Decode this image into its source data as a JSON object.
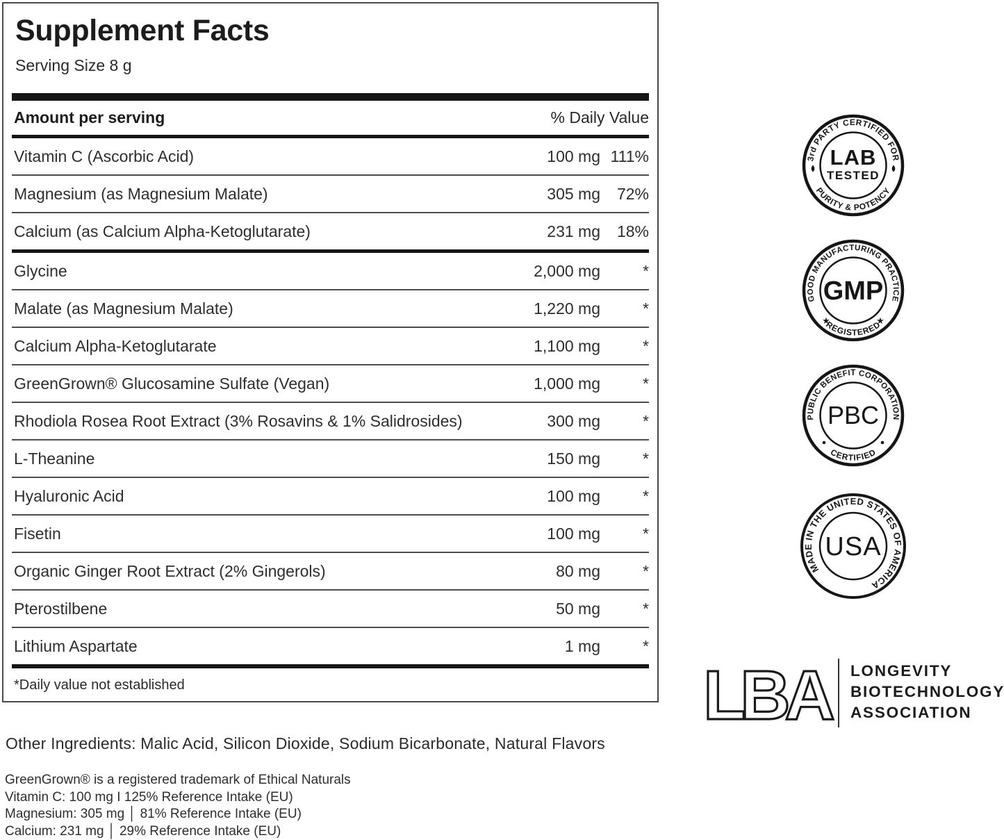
{
  "label": {
    "title": "Supplement Facts",
    "serving_size": "Serving Size 8 g",
    "column_headers": {
      "left": "Amount per serving",
      "right": "% Daily Value"
    },
    "rows": [
      {
        "name": "Vitamin C (Ascorbic Acid)",
        "amount": "100 mg",
        "dv": "111%"
      },
      {
        "name": "Magnesium (as Magnesium Malate)",
        "amount": "305 mg",
        "dv": "72%"
      },
      {
        "name": "Calcium (as Calcium Alpha-Ketoglutarate)",
        "amount": "231 mg",
        "dv": "18%"
      },
      {
        "name": "Glycine",
        "amount": "2,000 mg",
        "dv": "*"
      },
      {
        "name": "Malate (as Magnesium Malate)",
        "amount": "1,220 mg",
        "dv": "*"
      },
      {
        "name": "Calcium Alpha-Ketoglutarate",
        "amount": "1,100 mg",
        "dv": "*"
      },
      {
        "name": "GreenGrown® Glucosamine Sulfate (Vegan)",
        "amount": "1,000 mg",
        "dv": "*"
      },
      {
        "name": "Rhodiola Rosea Root Extract (3% Rosavins & 1% Salidrosides)",
        "amount": "300 mg",
        "dv": "*"
      },
      {
        "name": "L-Theanine",
        "amount": "150 mg",
        "dv": "*"
      },
      {
        "name": "Hyaluronic Acid",
        "amount": "100 mg",
        "dv": "*"
      },
      {
        "name": "Fisetin",
        "amount": "100 mg",
        "dv": "*"
      },
      {
        "name": "Organic Ginger Root Extract (2% Gingerols)",
        "amount": "80 mg",
        "dv": "*"
      },
      {
        "name": "Pterostilbene",
        "amount": "50 mg",
        "dv": "*"
      },
      {
        "name": "Lithium Aspartate",
        "amount": "1 mg",
        "dv": "*"
      }
    ],
    "medium_bar_after_row_index": 2,
    "footnote": "*Daily value not established"
  },
  "badges": [
    {
      "name": "lab-tested-badge",
      "arc_top": "3rd PARTY CERTIFIED FOR",
      "center_primary": "LAB",
      "center_secondary": "TESTED",
      "arc_bottom": "PURITY & POTENCY",
      "side_glyph": "droplet-icon"
    },
    {
      "name": "gmp-badge",
      "arc_top": "GOOD MANUFACTURING PRACTICE",
      "center_primary": "GMP",
      "arc_bottom": "REGISTERED",
      "side_glyph": "star-icon",
      "star_glyph": "★"
    },
    {
      "name": "pbc-badge",
      "arc_top": "PUBLIC BENEFIT CORPORATION",
      "center_primary": "PBC",
      "arc_bottom": "CERTIFIED",
      "side_glyph": "dot-icon"
    },
    {
      "name": "usa-badge",
      "arc_full": "MADE IN THE UNITED STATES OF AMERICA",
      "center_primary": "USA"
    }
  ],
  "association": {
    "monogram": "LBA",
    "line1": "LONGEVITY",
    "line2": "BIOTECHNOLOGY",
    "line3": "ASSOCIATION"
  },
  "footer": {
    "other_ingredients": "Other Ingredients: Malic Acid, Silicon Dioxide, Sodium Bicarbonate, Natural Flavors",
    "fine_print": [
      "GreenGrown® is a registered trademark of Ethical Naturals",
      "Vitamin C: 100 mg I 125% Reference Intake (EU)",
      "Magnesium: 305 mg │ 81% Reference Intake (EU)",
      "Calcium: 231 mg │ 29% Reference Intake (EU)"
    ]
  },
  "colors": {
    "ink": "#1f1f1f",
    "bar": "#161616",
    "separator": "#4c4c4c",
    "background": "#ffffff"
  }
}
